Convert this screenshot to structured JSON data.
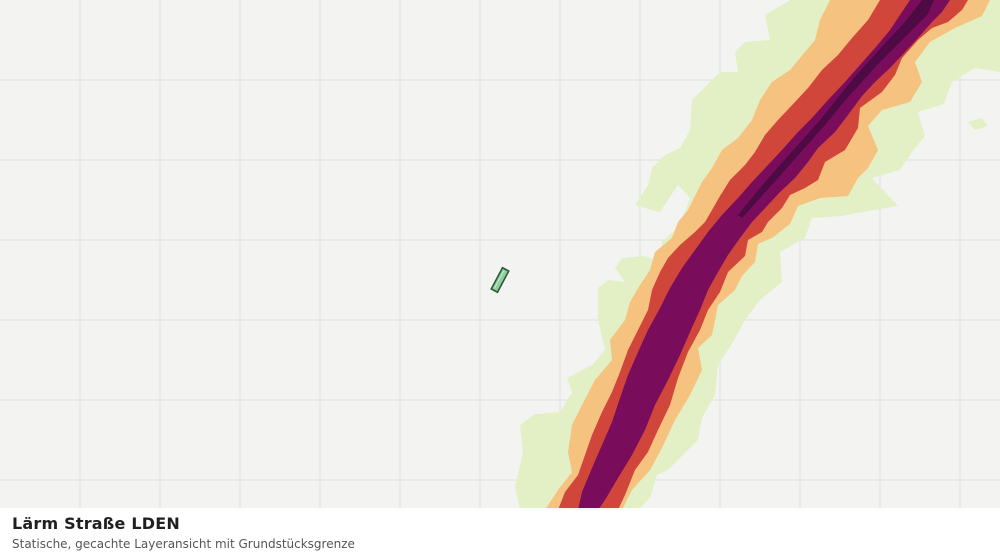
{
  "layer": {
    "title": "Lärm Straße LDEN",
    "subtitle": "Statische, gecachte Layeransicht mit Grundstücksgrenze"
  },
  "colors": {
    "background": "#f3f4f2",
    "grid": "#dedfdc",
    "noise_band_1": "#e3f0c6",
    "noise_band_2": "#f5c27f",
    "noise_band_3": "#d0463b",
    "noise_band_4": "#7a0c5c",
    "noise_band_5": "#4e0a45",
    "parcel_fill": "#8fcf9e",
    "parcel_stroke": "#2d5a3a"
  },
  "icons": {
    "parcel": "parcel-boundary-marker"
  }
}
